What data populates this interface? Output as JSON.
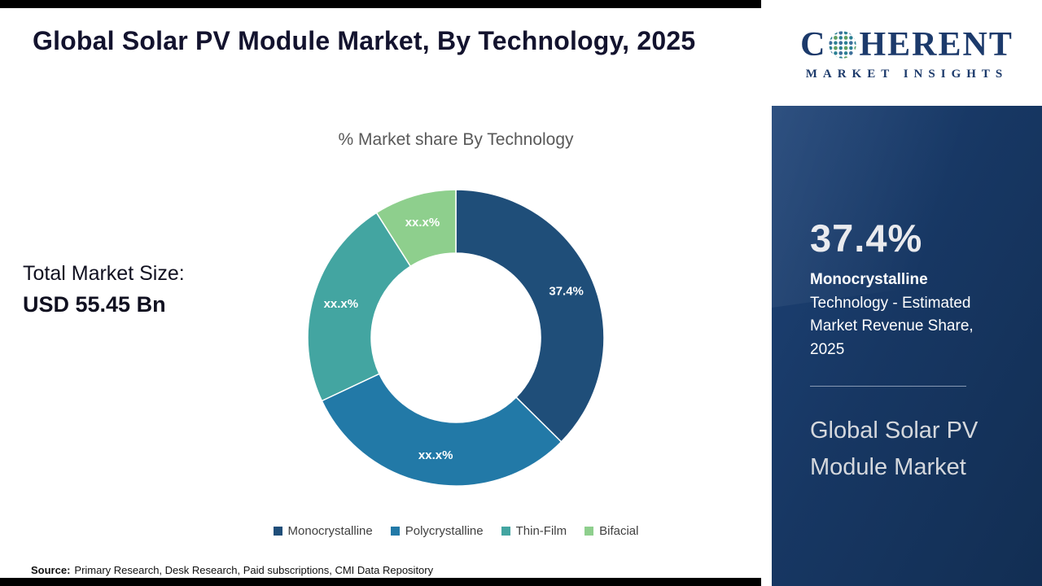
{
  "title": "Global Solar PV Module Market, By Technology, 2025",
  "total_market": {
    "label": "Total Market Size:",
    "value": "USD 55.45 Bn"
  },
  "source": {
    "label": "Source:",
    "text": "Primary Research, Desk Research, Paid subscriptions, CMI Data Repository"
  },
  "logo": {
    "part1": "C",
    "part2": "HERENT",
    "line2": "MARKET INSIGHTS"
  },
  "sidebar": {
    "stat_value": "37.4%",
    "stat_name": "Monocrystalline",
    "stat_desc": " Technology - Estimated Market Revenue Share, 2025",
    "market_name": "Global Solar PV Module Market"
  },
  "chart_data": {
    "type": "pie",
    "donut": true,
    "title": "% Market share By Technology",
    "categories": [
      "Monocrystalline",
      "Polycrystalline",
      "Thin-Film",
      "Bifacial"
    ],
    "values": [
      37.4,
      30.6,
      23.0,
      9.0
    ],
    "slice_labels": [
      "37.4%",
      "xx.x%",
      "xx.x%",
      "xx.x%"
    ],
    "colors": [
      "#1f4e79",
      "#2279a7",
      "#43a5a1",
      "#8ecf8d"
    ],
    "legend_position": "bottom",
    "start_angle_deg": 0
  }
}
